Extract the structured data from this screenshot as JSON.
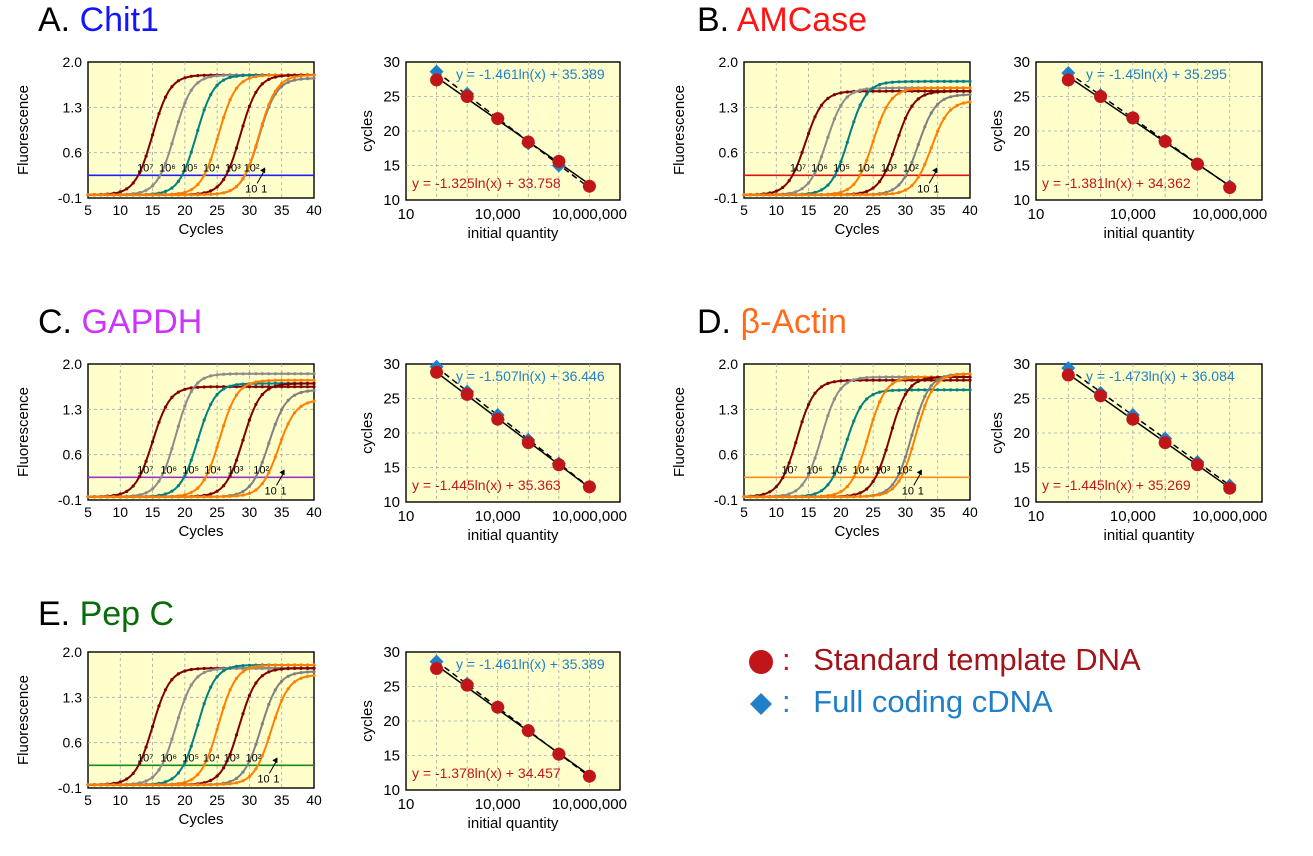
{
  "colors": {
    "plot_bg": "#ffffcc",
    "grid": "#a6a6a6",
    "standard": "#c0161a",
    "full_cdna": "#1f7fc9",
    "curve_series": [
      "#800000",
      "#8c8c8c",
      "#008080",
      "#ff8000",
      "#800000",
      "#808080",
      "#ff8000"
    ]
  },
  "legend": {
    "items": [
      {
        "marker": "circle",
        "color": "#c0161a",
        "label": "Standard template DNA"
      },
      {
        "marker": "diamond",
        "color": "#1f7fc9",
        "label": "Full coding cDNA"
      }
    ],
    "colon": ":"
  },
  "panels": [
    {
      "letter": "A.",
      "gene": "Chit1",
      "gene_color": "#1414ff",
      "threshold_color": "#2020ff",
      "threshold": 0.25
    },
    {
      "letter": "B.",
      "gene": "AMCase",
      "gene_color": "#ff1414",
      "threshold_color": "#e01010",
      "threshold": 0.25
    },
    {
      "letter": "C.",
      "gene": "GAPDH",
      "gene_color": "#cc33ff",
      "threshold_color": "#9933cc",
      "threshold": 0.25
    },
    {
      "letter": "D.",
      "gene": "β-Actin",
      "gene_color": "#ff6a1a",
      "threshold_color": "#ff8c1a",
      "threshold": 0.25
    },
    {
      "letter": "E.",
      "gene": "Pep C",
      "gene_color": "#0a6b0a",
      "threshold_color": "#1a8a1a",
      "threshold": 0.25
    }
  ],
  "chart_data": [
    {
      "panel": "A",
      "type": "line",
      "xlabel": "Cycles",
      "ylabel": "Fluorescence",
      "xlim": [
        5,
        40
      ],
      "ylim": [
        -0.1,
        2.0
      ],
      "xticks": [
        "5",
        "10",
        "15",
        "20",
        "25",
        "30",
        "35",
        "40"
      ],
      "yticks": [
        "2.0",
        "1.3",
        "0.6",
        "-0.1"
      ],
      "dilution_labels": [
        "10⁷",
        "10⁶",
        "10⁵",
        "10⁴",
        "10³",
        "10²",
        "10",
        "1"
      ],
      "series": [
        {
          "midpoint": 15.0,
          "max": 1.8
        },
        {
          "midpoint": 18.4,
          "max": 1.8
        },
        {
          "midpoint": 21.8,
          "max": 1.8
        },
        {
          "midpoint": 25.2,
          "max": 1.8
        },
        {
          "midpoint": 28.6,
          "max": 1.8
        },
        {
          "midpoint": 31.5,
          "max": 1.75
        },
        {
          "midpoint": 31.5,
          "max": 1.8
        }
      ]
    },
    {
      "panel": "A",
      "type": "scatter",
      "xlabel": "initial quantity",
      "ylabel": "cycles",
      "xscale": "log",
      "xlim": [
        10,
        100000000
      ],
      "ylim": [
        10,
        30
      ],
      "xticks": [
        "10",
        "10,000",
        "10,000,000"
      ],
      "yticks": [
        "30",
        "25",
        "20",
        "15",
        "10"
      ],
      "series": [
        {
          "name": "Full coding cDNA",
          "x": [
            100,
            1000,
            10000,
            100000,
            1000000,
            10000000
          ],
          "y": [
            28.6,
            25.4,
            21.8,
            18.2,
            15.0,
            12.0
          ],
          "equation": "y = -1.461ln(x) + 35.389",
          "line_style": "dashed"
        },
        {
          "name": "Standard template DNA",
          "x": [
            100,
            1000,
            10000,
            100000,
            1000000,
            10000000
          ],
          "y": [
            27.4,
            25.0,
            21.8,
            18.4,
            15.6,
            12.0
          ],
          "equation": "y = -1.325ln(x) + 33.758",
          "line_style": "solid"
        }
      ]
    },
    {
      "panel": "B",
      "type": "line",
      "xlabel": "Cycles",
      "ylabel": "Fluorescence",
      "xlim": [
        5,
        40
      ],
      "ylim": [
        -0.1,
        2.0
      ],
      "xticks": [
        "5",
        "10",
        "15",
        "20",
        "25",
        "30",
        "35",
        "40"
      ],
      "yticks": [
        "2.0",
        "1.3",
        "0.6",
        "-0.1"
      ],
      "dilution_labels": [
        "10⁷",
        "10⁶",
        "10⁵",
        "10⁴",
        "10³",
        "10²",
        "10",
        "1"
      ],
      "series": [
        {
          "midpoint": 14.5,
          "max": 1.55
        },
        {
          "midpoint": 17.8,
          "max": 1.6
        },
        {
          "midpoint": 21.2,
          "max": 1.7
        },
        {
          "midpoint": 25.0,
          "max": 1.6
        },
        {
          "midpoint": 28.6,
          "max": 1.55
        },
        {
          "midpoint": 32.0,
          "max": 1.5
        },
        {
          "midpoint": 34.0,
          "max": 1.4
        }
      ]
    },
    {
      "panel": "B",
      "type": "scatter",
      "xlabel": "initial quantity",
      "ylabel": "cycles",
      "xscale": "log",
      "xlim": [
        10,
        100000000
      ],
      "ylim": [
        10,
        30
      ],
      "xticks": [
        "10",
        "10,000",
        "10,000,000"
      ],
      "yticks": [
        "30",
        "25",
        "20",
        "15",
        "10"
      ],
      "series": [
        {
          "name": "Full coding cDNA",
          "x": [
            100,
            1000,
            10000,
            100000,
            1000000,
            10000000
          ],
          "y": [
            28.4,
            25.2,
            21.9,
            18.6,
            15.2,
            12.0
          ],
          "equation": "y = -1.45ln(x) + 35.295",
          "line_style": "dashed"
        },
        {
          "name": "Standard template DNA",
          "x": [
            100,
            1000,
            10000,
            100000,
            1000000,
            10000000
          ],
          "y": [
            27.4,
            25.0,
            21.9,
            18.5,
            15.2,
            11.8
          ],
          "equation": "y = -1.381ln(x) + 34.362",
          "line_style": "solid"
        }
      ]
    },
    {
      "panel": "C",
      "type": "line",
      "xlabel": "Cycles",
      "ylabel": "Fluorescence",
      "xlim": [
        5,
        40
      ],
      "ylim": [
        -0.1,
        2.0
      ],
      "xticks": [
        "5",
        "10",
        "15",
        "20",
        "25",
        "30",
        "35",
        "40"
      ],
      "yticks": [
        "2.0",
        "1.3",
        "0.6",
        "-0.1"
      ],
      "dilution_labels": [
        "10⁷",
        "10⁶",
        "10⁵",
        "10⁴",
        "10³",
        "10²",
        "10",
        "1"
      ],
      "series": [
        {
          "midpoint": 15.0,
          "max": 1.65
        },
        {
          "midpoint": 18.6,
          "max": 1.85
        },
        {
          "midpoint": 22.0,
          "max": 1.7
        },
        {
          "midpoint": 25.4,
          "max": 1.75
        },
        {
          "midpoint": 29.0,
          "max": 1.7
        },
        {
          "midpoint": 33.0,
          "max": 1.6
        },
        {
          "midpoint": 34.5,
          "max": 1.45
        }
      ]
    },
    {
      "panel": "C",
      "type": "scatter",
      "xlabel": "initial quantity",
      "ylabel": "cycles",
      "xscale": "log",
      "xlim": [
        10,
        100000000
      ],
      "ylim": [
        10,
        30
      ],
      "xticks": [
        "10",
        "10,000",
        "10,000,000"
      ],
      "yticks": [
        "30",
        "25",
        "20",
        "15",
        "10"
      ],
      "series": [
        {
          "name": "Full coding cDNA",
          "x": [
            100,
            1000,
            10000,
            100000,
            1000000,
            10000000
          ],
          "y": [
            29.6,
            26.0,
            22.6,
            19.0,
            15.6,
            12.2
          ],
          "equation": "y = -1.507ln(x) + 36.446",
          "line_style": "dashed"
        },
        {
          "name": "Standard template DNA",
          "x": [
            100,
            1000,
            10000,
            100000,
            1000000,
            10000000
          ],
          "y": [
            28.8,
            25.6,
            22.0,
            18.6,
            15.4,
            12.2
          ],
          "equation": "y = -1.445ln(x) + 35.363",
          "line_style": "solid"
        }
      ]
    },
    {
      "panel": "D",
      "type": "line",
      "xlabel": "Cycles",
      "ylabel": "Fluorescence",
      "xlim": [
        5,
        40
      ],
      "ylim": [
        -0.1,
        2.0
      ],
      "xticks": [
        "5",
        "10",
        "15",
        "20",
        "25",
        "30",
        "35",
        "40"
      ],
      "yticks": [
        "2.0",
        "1.3",
        "0.6",
        "-0.1"
      ],
      "dilution_labels": [
        "10⁷",
        "10⁶",
        "10⁵",
        "10⁴",
        "10³",
        "10²",
        "10",
        "1"
      ],
      "series": [
        {
          "midpoint": 13.2,
          "max": 1.75
        },
        {
          "midpoint": 17.0,
          "max": 1.8
        },
        {
          "midpoint": 20.8,
          "max": 1.6
        },
        {
          "midpoint": 24.2,
          "max": 1.8
        },
        {
          "midpoint": 27.6,
          "max": 1.8
        },
        {
          "midpoint": 31.0,
          "max": 1.85
        },
        {
          "midpoint": 31.6,
          "max": 1.85
        }
      ]
    },
    {
      "panel": "D",
      "type": "scatter",
      "xlabel": "initial quantity",
      "ylabel": "cycles",
      "xscale": "log",
      "xlim": [
        10,
        100000000
      ],
      "ylim": [
        10,
        30
      ],
      "xticks": [
        "10",
        "10,000",
        "10,000,000"
      ],
      "yticks": [
        "30",
        "25",
        "20",
        "15",
        "10"
      ],
      "series": [
        {
          "name": "Full coding cDNA",
          "x": [
            100,
            1000,
            10000,
            100000,
            1000000,
            10000000
          ],
          "y": [
            29.4,
            25.8,
            22.6,
            19.2,
            15.8,
            12.4
          ],
          "equation": "y = -1.473ln(x) + 36.084",
          "line_style": "dashed"
        },
        {
          "name": "Standard template DNA",
          "x": [
            100,
            1000,
            10000,
            100000,
            1000000,
            10000000
          ],
          "y": [
            28.4,
            25.4,
            22.0,
            18.6,
            15.4,
            12.0
          ],
          "equation": "y = -1.445ln(x) + 35.269",
          "line_style": "solid"
        }
      ]
    },
    {
      "panel": "E",
      "type": "line",
      "xlabel": "Cycles",
      "ylabel": "Fluorescence",
      "xlim": [
        5,
        40
      ],
      "ylim": [
        -0.1,
        2.0
      ],
      "xticks": [
        "5",
        "10",
        "15",
        "20",
        "25",
        "30",
        "35",
        "40"
      ],
      "yticks": [
        "2.0",
        "1.3",
        "0.6",
        "-0.1"
      ],
      "dilution_labels": [
        "10⁷",
        "10⁶",
        "10⁵",
        "10⁴",
        "10³",
        "10²",
        "10",
        "1"
      ],
      "series": [
        {
          "midpoint": 15.0,
          "max": 1.75
        },
        {
          "midpoint": 18.6,
          "max": 1.75
        },
        {
          "midpoint": 22.0,
          "max": 1.8
        },
        {
          "midpoint": 25.2,
          "max": 1.8
        },
        {
          "midpoint": 28.4,
          "max": 1.75
        },
        {
          "midpoint": 31.8,
          "max": 1.7
        },
        {
          "midpoint": 33.4,
          "max": 1.65
        }
      ]
    },
    {
      "panel": "E",
      "type": "scatter",
      "xlabel": "initial quantity",
      "ylabel": "cycles",
      "xscale": "log",
      "xlim": [
        10,
        100000000
      ],
      "ylim": [
        10,
        30
      ],
      "xticks": [
        "10",
        "10,000",
        "10,000,000"
      ],
      "yticks": [
        "30",
        "25",
        "20",
        "15",
        "10"
      ],
      "series": [
        {
          "name": "Full coding cDNA",
          "x": [
            100,
            1000,
            10000,
            100000,
            1000000,
            10000000
          ],
          "y": [
            28.6,
            25.4,
            22.0,
            18.6,
            15.2,
            12.0
          ],
          "equation": "y = -1.461ln(x) + 35.389",
          "line_style": "dashed"
        },
        {
          "name": "Standard template DNA",
          "x": [
            100,
            1000,
            10000,
            100000,
            1000000,
            10000000
          ],
          "y": [
            27.6,
            25.2,
            22.0,
            18.6,
            15.2,
            12.0
          ],
          "equation": "y = -1.378ln(x) + 34.457",
          "line_style": "solid"
        }
      ]
    }
  ]
}
